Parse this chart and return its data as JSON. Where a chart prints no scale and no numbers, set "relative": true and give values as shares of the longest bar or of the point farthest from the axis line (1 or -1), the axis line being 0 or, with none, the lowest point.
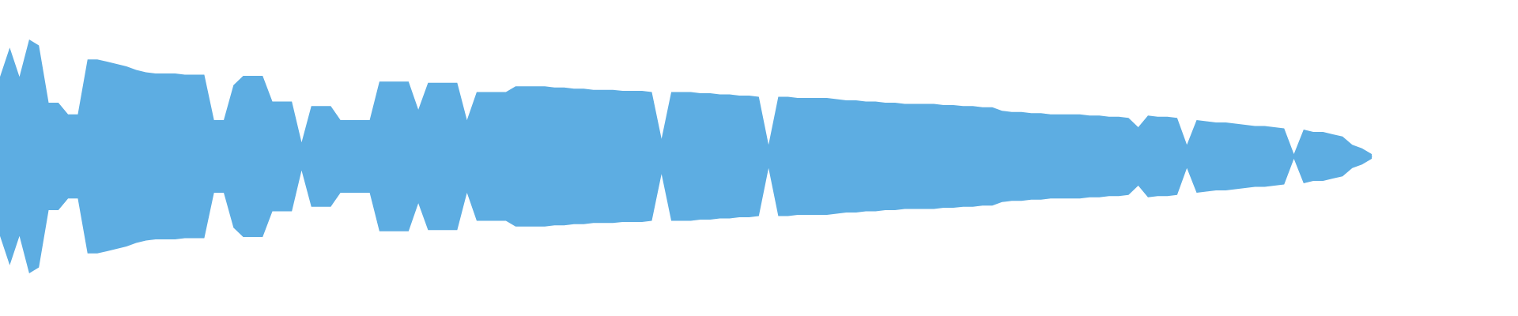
{
  "chart_data": {
    "type": "area",
    "relative": true,
    "categories": [
      null,
      null,
      null,
      null,
      null,
      null,
      null,
      null,
      null,
      null,
      null,
      null,
      null,
      null,
      null,
      null,
      null,
      null,
      null,
      null,
      null,
      null,
      null,
      null,
      null,
      null,
      null,
      null,
      null,
      null,
      null,
      null,
      null,
      null,
      null,
      null,
      null,
      null,
      null,
      null,
      null,
      null,
      null,
      null,
      null,
      null,
      null,
      null,
      null,
      null,
      null,
      null,
      null,
      null,
      null,
      null,
      null,
      null,
      null,
      null,
      null,
      null,
      null,
      null,
      null,
      null,
      null,
      null,
      null,
      null,
      null,
      null,
      null,
      null,
      null,
      null,
      null,
      null,
      null,
      null,
      null,
      null,
      null,
      null,
      null,
      null,
      null,
      null,
      null,
      null,
      null,
      null,
      null,
      null,
      null,
      null,
      null,
      null,
      null,
      null,
      null,
      null,
      null,
      null,
      null,
      null,
      null,
      null,
      null,
      null,
      null,
      null,
      null,
      null,
      null,
      null,
      null,
      null,
      null,
      null,
      null,
      null,
      null,
      null,
      null,
      null,
      null,
      null,
      null,
      null,
      null,
      null,
      null,
      null,
      null,
      null,
      null,
      null,
      null,
      null,
      null,
      null
    ],
    "series": [
      {
        "color": "#5dade2",
        "values": [
          0.68,
          0.93,
          0.68,
          1,
          0.95,
          0.46,
          0.46,
          0.36,
          0.36,
          0.83,
          0.83,
          0.81,
          0.79,
          0.77,
          0.74,
          0.72,
          0.71,
          0.71,
          0.71,
          0.7,
          0.7,
          0.7,
          0.31,
          0.31,
          0.61,
          0.69,
          0.69,
          0.69,
          0.47,
          0.47,
          0.47,
          0.12,
          0.43,
          0.43,
          0.43,
          0.31,
          0.31,
          0.31,
          0.31,
          0.64,
          0.64,
          0.64,
          0.64,
          0.4,
          0.63,
          0.63,
          0.63,
          0.63,
          0.31,
          0.55,
          0.55,
          0.55,
          0.55,
          0.6,
          0.6,
          0.6,
          0.6,
          0.59,
          0.59,
          0.58,
          0.58,
          0.57,
          0.57,
          0.57,
          0.56,
          0.56,
          0.56,
          0.55,
          0.15,
          0.55,
          0.55,
          0.55,
          0.54,
          0.54,
          0.53,
          0.53,
          0.52,
          0.52,
          0.51,
          0.1,
          0.51,
          0.51,
          0.5,
          0.5,
          0.5,
          0.5,
          0.49,
          0.48,
          0.48,
          0.47,
          0.47,
          0.46,
          0.46,
          0.45,
          0.45,
          0.45,
          0.45,
          0.44,
          0.44,
          0.43,
          0.43,
          0.42,
          0.42,
          0.39,
          0.38,
          0.38,
          0.37,
          0.37,
          0.36,
          0.36,
          0.36,
          0.36,
          0.35,
          0.35,
          0.34,
          0.34,
          0.33,
          0.25,
          0.35,
          0.34,
          0.34,
          0.33,
          0.1,
          0.31,
          0.3,
          0.29,
          0.29,
          0.28,
          0.27,
          0.26,
          0.26,
          0.25,
          0.24,
          0.02,
          0.23,
          0.21,
          0.21,
          0.19,
          0.17,
          0.1,
          0.07,
          0.02
        ]
      },
      {
        "color": "#5dade2",
        "values": [
          -0.68,
          -0.93,
          -0.68,
          -1,
          -0.95,
          -0.46,
          -0.46,
          -0.36,
          -0.36,
          -0.83,
          -0.83,
          -0.81,
          -0.79,
          -0.77,
          -0.74,
          -0.72,
          -0.71,
          -0.71,
          -0.71,
          -0.7,
          -0.7,
          -0.7,
          -0.31,
          -0.31,
          -0.61,
          -0.69,
          -0.69,
          -0.69,
          -0.47,
          -0.47,
          -0.47,
          -0.12,
          -0.43,
          -0.43,
          -0.43,
          -0.31,
          -0.31,
          -0.31,
          -0.31,
          -0.64,
          -0.64,
          -0.64,
          -0.64,
          -0.4,
          -0.63,
          -0.63,
          -0.63,
          -0.63,
          -0.31,
          -0.55,
          -0.55,
          -0.55,
          -0.55,
          -0.6,
          -0.6,
          -0.6,
          -0.6,
          -0.59,
          -0.59,
          -0.58,
          -0.58,
          -0.57,
          -0.57,
          -0.57,
          -0.56,
          -0.56,
          -0.56,
          -0.55,
          -0.15,
          -0.55,
          -0.55,
          -0.55,
          -0.54,
          -0.54,
          -0.53,
          -0.53,
          -0.52,
          -0.52,
          -0.51,
          -0.1,
          -0.51,
          -0.51,
          -0.5,
          -0.5,
          -0.5,
          -0.5,
          -0.49,
          -0.48,
          -0.48,
          -0.47,
          -0.47,
          -0.46,
          -0.46,
          -0.45,
          -0.45,
          -0.45,
          -0.45,
          -0.44,
          -0.44,
          -0.43,
          -0.43,
          -0.42,
          -0.42,
          -0.39,
          -0.38,
          -0.38,
          -0.37,
          -0.37,
          -0.36,
          -0.36,
          -0.36,
          -0.36,
          -0.35,
          -0.35,
          -0.34,
          -0.34,
          -0.33,
          -0.25,
          -0.35,
          -0.34,
          -0.34,
          -0.33,
          -0.1,
          -0.31,
          -0.3,
          -0.29,
          -0.29,
          -0.28,
          -0.27,
          -0.26,
          -0.26,
          -0.25,
          -0.24,
          -0.02,
          -0.23,
          -0.21,
          -0.21,
          -0.19,
          -0.17,
          -0.1,
          -0.07,
          -0.02
        ]
      }
    ]
  }
}
